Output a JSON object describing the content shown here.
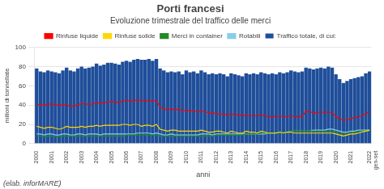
{
  "chart_data": {
    "type": "bar",
    "title": "Porti francesi",
    "subtitle": "Evoluzione trimestrale del traffico delle merci",
    "footnote": "(elab. inforMARE)",
    "y_label": "milioni di tonnellate",
    "x_label": "anni",
    "categories": [
      "2000",
      null,
      null,
      null,
      "2001",
      null,
      null,
      null,
      "2002",
      null,
      null,
      null,
      "2003",
      null,
      null,
      null,
      "2004",
      null,
      null,
      null,
      "2005",
      null,
      null,
      null,
      "2006",
      null,
      null,
      null,
      "2007",
      null,
      null,
      null,
      "2008",
      null,
      null,
      null,
      "2009",
      null,
      null,
      null,
      "2010",
      null,
      null,
      null,
      "2011",
      null,
      null,
      null,
      "2012",
      null,
      null,
      null,
      "2013",
      null,
      null,
      null,
      "2014",
      null,
      null,
      null,
      "2015",
      null,
      null,
      null,
      "2016",
      null,
      null,
      null,
      "2017",
      null,
      null,
      null,
      "2018",
      null,
      null,
      null,
      "2019",
      null,
      null,
      null,
      "2020",
      null,
      null,
      null,
      "2021",
      null,
      null,
      null,
      null,
      "2022\ngen-set"
    ],
    "series": [
      {
        "name": "Traffico totale, di cui:",
        "type": "bar",
        "color": "#1F4E9A",
        "values": [
          78,
          75,
          74,
          76,
          75,
          74,
          73,
          76,
          79,
          76,
          75,
          78,
          80,
          78,
          79,
          80,
          83,
          81,
          82,
          84,
          84,
          83,
          82,
          85,
          86,
          85,
          87,
          88,
          87,
          87,
          88,
          86,
          88,
          78,
          76,
          74,
          75,
          74,
          75,
          72,
          76,
          74,
          75,
          73,
          76,
          74,
          72,
          73,
          72,
          73,
          72,
          70,
          73,
          72,
          71,
          70,
          73,
          72,
          73,
          72,
          74,
          73,
          72,
          73,
          72,
          74,
          73,
          74,
          76,
          75,
          74,
          75,
          79,
          78,
          77,
          78,
          79,
          78,
          80,
          79,
          72,
          67,
          63,
          65,
          67,
          68,
          69,
          70,
          73,
          75
        ]
      },
      {
        "name": "Rinfuse liquide",
        "type": "line",
        "color": "#FF0000",
        "values": [
          41,
          40,
          40,
          41,
          41,
          40,
          40,
          40,
          40,
          39,
          39,
          40,
          42,
          41,
          41,
          41,
          43,
          42,
          43,
          43,
          44,
          43,
          43,
          44,
          45,
          44,
          45,
          45,
          45,
          44,
          45,
          44,
          45,
          38,
          36,
          35,
          36,
          35,
          36,
          34,
          35,
          34,
          34,
          33,
          34,
          33,
          32,
          32,
          31,
          31,
          30,
          30,
          31,
          30,
          30,
          29,
          30,
          29,
          29,
          29,
          30,
          29,
          28,
          28,
          28,
          29,
          28,
          28,
          29,
          28,
          28,
          28,
          34,
          33,
          32,
          32,
          33,
          32,
          33,
          32,
          28,
          26,
          24,
          25,
          26,
          27,
          28,
          29,
          31,
          33
        ]
      },
      {
        "name": "Rinfuse solide",
        "type": "line",
        "color": "#FFD700",
        "values": [
          18,
          17,
          16,
          17,
          17,
          16,
          15,
          16,
          18,
          17,
          17,
          17,
          18,
          17,
          18,
          18,
          19,
          18,
          19,
          19,
          19,
          19,
          19,
          20,
          20,
          19,
          20,
          20,
          18,
          19,
          19,
          18,
          20,
          15,
          14,
          13,
          14,
          14,
          13,
          13,
          13,
          13,
          13,
          13,
          14,
          13,
          12,
          12,
          13,
          13,
          12,
          11,
          13,
          12,
          11,
          11,
          13,
          12,
          12,
          11,
          13,
          12,
          11,
          11,
          11,
          12,
          11,
          12,
          12,
          11,
          11,
          11,
          11,
          11,
          11,
          11,
          11,
          11,
          11,
          11,
          10,
          9,
          8,
          9,
          10,
          10,
          11,
          12,
          13,
          14
        ]
      },
      {
        "name": "Merci in container",
        "type": "line",
        "color": "#228B22",
        "values": [
          8,
          8,
          7,
          8,
          8,
          7,
          7,
          8,
          8,
          8,
          8,
          8,
          8,
          8,
          8,
          8,
          8,
          8,
          8,
          8,
          8,
          8,
          8,
          8,
          9,
          9,
          9,
          9,
          9,
          9,
          9,
          9,
          9,
          8,
          8,
          8,
          8,
          8,
          8,
          8,
          8,
          8,
          8,
          8,
          8,
          8,
          8,
          8,
          9,
          9,
          9,
          9,
          9,
          9,
          9,
          9,
          10,
          10,
          10,
          10,
          11,
          11,
          11,
          11,
          12,
          12,
          12,
          12,
          13,
          13,
          13,
          13,
          13,
          13,
          13,
          13,
          13,
          13,
          13,
          13,
          12,
          11,
          10,
          11,
          12,
          12,
          13,
          13,
          13,
          13
        ]
      },
      {
        "name": "Rotabili",
        "type": "line",
        "color": "#87CEEB",
        "values": [
          10,
          10,
          9,
          10,
          10,
          9,
          9,
          10,
          10,
          9,
          9,
          10,
          10,
          9,
          10,
          10,
          10,
          9,
          10,
          10,
          10,
          10,
          10,
          10,
          10,
          10,
          10,
          11,
          11,
          11,
          11,
          10,
          11,
          10,
          9,
          9,
          10,
          9,
          9,
          9,
          9,
          9,
          9,
          9,
          10,
          10,
          10,
          9,
          10,
          10,
          10,
          10,
          10,
          10,
          10,
          10,
          10,
          10,
          10,
          10,
          10,
          10,
          11,
          11,
          11,
          12,
          12,
          12,
          13,
          13,
          13,
          13,
          13,
          13,
          14,
          14,
          14,
          14,
          15,
          15,
          14,
          13,
          12,
          12,
          13,
          13,
          14,
          14,
          14,
          14
        ]
      }
    ],
    "ylim": [
      0,
      100
    ],
    "yticks": [
      0,
      20,
      40,
      60,
      80,
      100
    ],
    "grid": "y",
    "legend": "top"
  }
}
